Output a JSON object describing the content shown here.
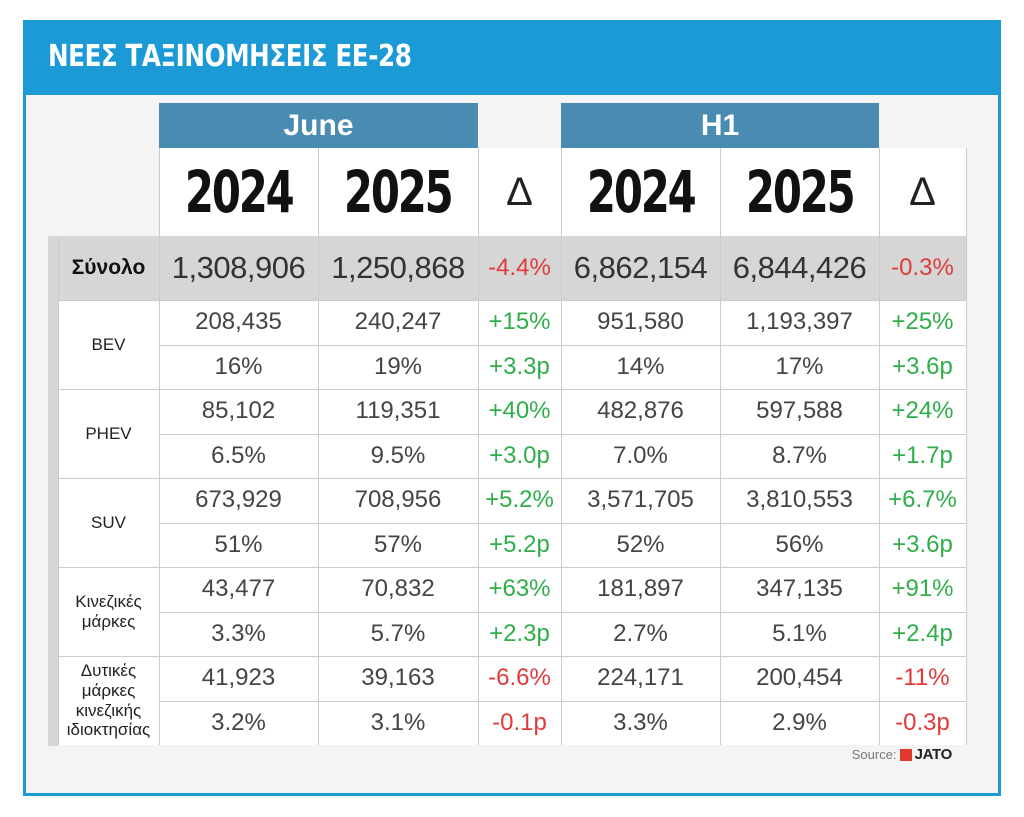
{
  "header": {
    "title": "ΝΕΕΣ ΤΑΞΙΝΟΜΗΣΕΙΣ ΕΕ-28"
  },
  "source": {
    "label": "Source:",
    "brand": "JATO"
  },
  "colors": {
    "accent": "#1c9ad6",
    "group_header": "#4a8bb1",
    "positive": "#2fae4a",
    "negative": "#e03a3a"
  },
  "chart_data": {
    "type": "table",
    "title": "ΝΕΕΣ ΤΑΞΙΝΟΜΗΣΕΙΣ ΕΕ-28",
    "groups": [
      "June",
      "H1"
    ],
    "columns": [
      "2024",
      "2025",
      "Δ",
      "2024",
      "2025",
      "Δ"
    ],
    "total": {
      "label": "Σύνολο",
      "values": [
        "1,308,906",
        "1,250,868",
        "-4.4%",
        "6,862,154",
        "6,844,426",
        "-0.3%"
      ]
    },
    "rows": [
      {
        "label": "BEV",
        "values": [
          "208,435",
          "240,247",
          "+15%",
          "951,580",
          "1,193,397",
          "+25%"
        ],
        "shares": [
          "16%",
          "19%",
          "+3.3p",
          "14%",
          "17%",
          "+3.6p"
        ]
      },
      {
        "label": "PHEV",
        "values": [
          "85,102",
          "119,351",
          "+40%",
          "482,876",
          "597,588",
          "+24%"
        ],
        "shares": [
          "6.5%",
          "9.5%",
          "+3.0p",
          "7.0%",
          "8.7%",
          "+1.7p"
        ]
      },
      {
        "label": "SUV",
        "values": [
          "673,929",
          "708,956",
          "+5.2%",
          "3,571,705",
          "3,810,553",
          "+6.7%"
        ],
        "shares": [
          "51%",
          "57%",
          "+5.2p",
          "52%",
          "56%",
          "+3.6p"
        ]
      },
      {
        "label": "Κινεζικές μάρκες",
        "values": [
          "43,477",
          "70,832",
          "+63%",
          "181,897",
          "347,135",
          "+91%"
        ],
        "shares": [
          "3.3%",
          "5.7%",
          "+2.3p",
          "2.7%",
          "5.1%",
          "+2.4p"
        ]
      },
      {
        "label": "Δυτικές μάρκες κινεζικής ιδιοκτησίας",
        "values": [
          "41,923",
          "39,163",
          "-6.6%",
          "224,171",
          "200,454",
          "-11%"
        ],
        "shares": [
          "3.2%",
          "3.1%",
          "-0.1p",
          "3.3%",
          "2.9%",
          "-0.3p"
        ]
      }
    ]
  }
}
